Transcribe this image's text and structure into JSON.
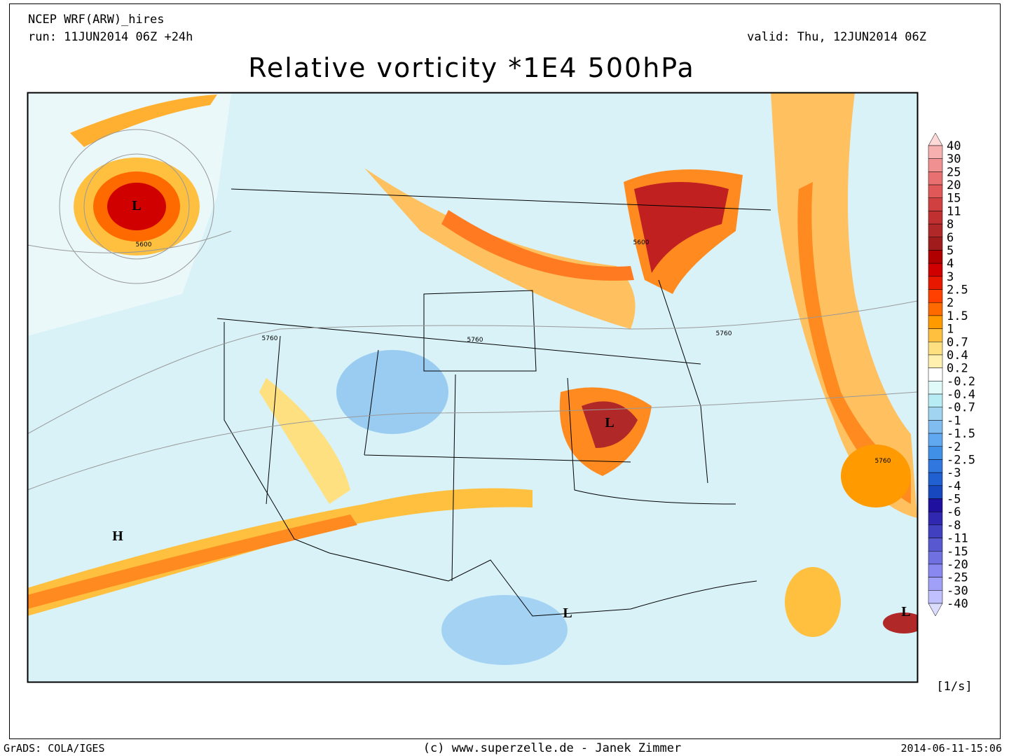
{
  "header": {
    "model": "NCEP WRF(ARW)_hires",
    "run": "run: 11JUN2014 06Z +24h",
    "valid": "valid: Thu, 12JUN2014 06Z",
    "title": "Relative vorticity *1E4 500hPa"
  },
  "map": {
    "pressure_centers": [
      "L",
      "H",
      "L",
      "L",
      "L"
    ],
    "contours": [
      "5600",
      "5600",
      "5760",
      "5760",
      "5760",
      "5760"
    ]
  },
  "legend": {
    "levels": [
      40,
      30,
      25,
      20,
      15,
      11,
      8,
      6,
      5,
      4,
      3,
      2.5,
      2,
      1.5,
      1,
      0.7,
      0.4,
      0.2,
      -0.2,
      -0.4,
      -0.7,
      -1,
      -1.5,
      -2,
      -2.5,
      -3,
      -4,
      -5,
      -6,
      -8,
      -11,
      -15,
      -20,
      -25,
      -30,
      -40
    ],
    "colors": [
      "#ffd8d8",
      "#f6b0b0",
      "#f09090",
      "#e87070",
      "#e05858",
      "#d04040",
      "#c03030",
      "#b02828",
      "#a01c1c",
      "#b00000",
      "#d00000",
      "#e81800",
      "#ff4000",
      "#ff6a00",
      "#ff9a00",
      "#ffc040",
      "#ffe080",
      "#fff0b0",
      "#ffffff",
      "#e0fafa",
      "#b8ecf4",
      "#a0d4f0",
      "#80bcf0",
      "#60a8f0",
      "#4090e8",
      "#3078e0",
      "#2060d0",
      "#1848c0",
      "#2010a0",
      "#3028b0",
      "#4040c0",
      "#5858d0",
      "#7070e0",
      "#8888f0",
      "#a0a0f8",
      "#c0c0ff",
      "#dcdcff"
    ],
    "units": "[1/s]"
  },
  "footer": {
    "left": "GrADS: COLA/IGES",
    "center": "(c) www.superzelle.de - Janek Zimmer",
    "right": "2014-06-11-15:06"
  }
}
